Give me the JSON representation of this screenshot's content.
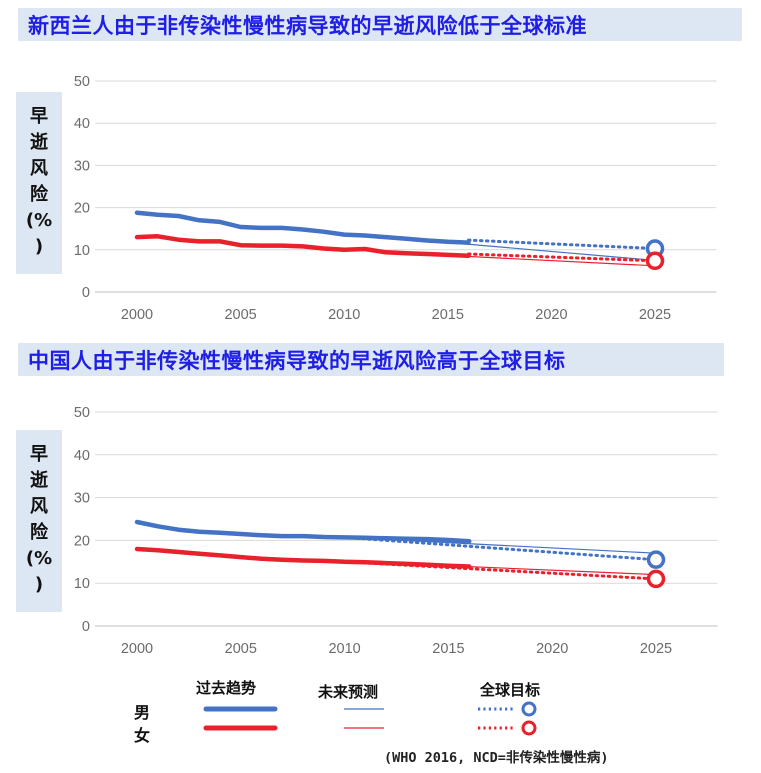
{
  "chart_data": [
    {
      "type": "line",
      "title": "新西兰人由于非传染性慢性病导致的早逝风险低于全球标准",
      "ylabel_chars": [
        "早",
        "逝",
        "风",
        "险",
        "(%",
        ")"
      ],
      "xticks": [
        2000,
        2005,
        2010,
        2015,
        2020,
        2025
      ],
      "yticks": [
        0,
        10,
        20,
        30,
        40,
        50
      ],
      "xlim": [
        1998,
        2027
      ],
      "ylim": [
        0,
        50
      ],
      "grid": true,
      "series": [
        {
          "name": "男",
          "kind": "past",
          "color": "#4472c4",
          "x": [
            2000,
            2001,
            2002,
            2003,
            2004,
            2005,
            2006,
            2007,
            2008,
            2009,
            2010,
            2011,
            2012,
            2013,
            2014,
            2015,
            2016
          ],
          "y": [
            18.8,
            18.3,
            18.0,
            17.0,
            16.6,
            15.4,
            15.2,
            15.2,
            14.8,
            14.3,
            13.6,
            13.4,
            13.0,
            12.6,
            12.2,
            11.9,
            11.7
          ]
        },
        {
          "name": "女",
          "kind": "past",
          "color": "#e8212b",
          "x": [
            2000,
            2001,
            2002,
            2003,
            2004,
            2005,
            2006,
            2007,
            2008,
            2009,
            2010,
            2011,
            2012,
            2013,
            2014,
            2015,
            2016
          ],
          "y": [
            13.0,
            13.2,
            12.4,
            12.0,
            12.0,
            11.1,
            11.0,
            11.0,
            10.8,
            10.3,
            10.0,
            10.2,
            9.4,
            9.2,
            9.0,
            8.8,
            8.6
          ]
        },
        {
          "name": "男",
          "kind": "projection",
          "color": "#4472c4",
          "x": [
            2012,
            2025
          ],
          "y": [
            13.0,
            7.5
          ]
        },
        {
          "name": "女",
          "kind": "projection",
          "color": "#e8212b",
          "x": [
            2012,
            2025
          ],
          "y": [
            9.4,
            6.2
          ]
        },
        {
          "name": "男",
          "kind": "target",
          "color": "#4472c4",
          "x": [
            2016,
            2025
          ],
          "y": [
            12.3,
            10.3
          ]
        },
        {
          "name": "女",
          "kind": "target",
          "color": "#e8212b",
          "x": [
            2016,
            2025
          ],
          "y": [
            9.0,
            7.4
          ]
        }
      ]
    },
    {
      "type": "line",
      "title": "中国人由于非传染性慢性病导致的早逝风险高于全球目标",
      "ylabel_chars": [
        "早",
        "逝",
        "风",
        "险",
        "(%",
        ")"
      ],
      "xticks": [
        2000,
        2005,
        2010,
        2015,
        2020,
        2025
      ],
      "yticks": [
        0,
        10,
        20,
        30,
        40,
        50
      ],
      "xlim": [
        1998,
        2027
      ],
      "ylim": [
        0,
        50
      ],
      "grid": true,
      "series": [
        {
          "name": "男",
          "kind": "past",
          "color": "#4472c4",
          "x": [
            2000,
            2001,
            2002,
            2003,
            2004,
            2005,
            2006,
            2007,
            2008,
            2009,
            2010,
            2011,
            2012,
            2013,
            2014,
            2015,
            2016
          ],
          "y": [
            24.3,
            23.3,
            22.5,
            22.0,
            21.8,
            21.5,
            21.2,
            21.0,
            21.0,
            20.8,
            20.7,
            20.6,
            20.5,
            20.4,
            20.3,
            20.1,
            19.8
          ]
        },
        {
          "name": "女",
          "kind": "past",
          "color": "#e8212b",
          "x": [
            2000,
            2001,
            2002,
            2003,
            2004,
            2005,
            2006,
            2007,
            2008,
            2009,
            2010,
            2011,
            2012,
            2013,
            2014,
            2015,
            2016
          ],
          "y": [
            18.0,
            17.7,
            17.3,
            16.9,
            16.5,
            16.1,
            15.7,
            15.5,
            15.3,
            15.2,
            15.0,
            14.9,
            14.7,
            14.5,
            14.3,
            14.1,
            13.9
          ]
        },
        {
          "name": "男",
          "kind": "projection",
          "color": "#4472c4",
          "x": [
            2010,
            2025
          ],
          "y": [
            20.7,
            17.0
          ]
        },
        {
          "name": "女",
          "kind": "projection",
          "color": "#e8212b",
          "x": [
            2012,
            2025
          ],
          "y": [
            14.7,
            12.0
          ]
        },
        {
          "name": "男",
          "kind": "target",
          "color": "#4472c4",
          "x": [
            2010,
            2025
          ],
          "y": [
            20.7,
            15.5
          ]
        },
        {
          "name": "女",
          "kind": "target",
          "color": "#e8212b",
          "x": [
            2010,
            2025
          ],
          "y": [
            15.0,
            11.0
          ]
        }
      ]
    }
  ],
  "legend": {
    "past_label": "过去趋势",
    "projection_label": "未来预测",
    "target_label": "全球目标",
    "male_label": "男",
    "female_label": "女",
    "male_color": "#4472c4",
    "female_color": "#e8212b"
  },
  "source": "(WHO 2016, NCD=非传染性慢性病)"
}
